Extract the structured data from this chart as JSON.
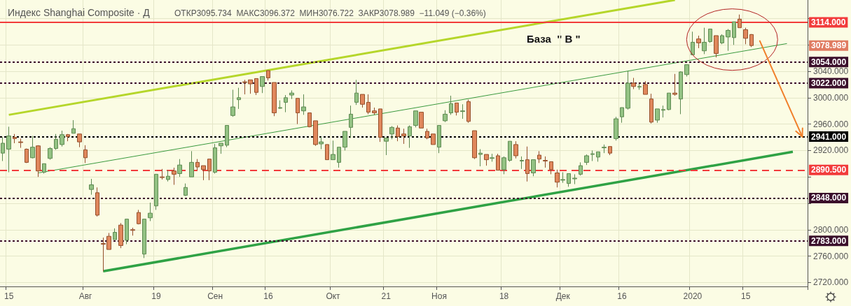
{
  "chart_data": {
    "type": "candlestick",
    "title": "Индекс Shanghai Composite · Д",
    "subtitle": "ОТКР3095.734  МАКС3096.372  МИН3076.722  ЗАКР3078.989  −11.049 (−0.36%)",
    "categories": [
      null,
      "15",
      null,
      null,
      null,
      null,
      null,
      null,
      null,
      null,
      null,
      null,
      null,
      null,
      "Авг",
      null,
      null,
      null,
      null,
      null,
      null,
      null,
      null,
      null,
      null,
      null,
      "19",
      null,
      null,
      null,
      null,
      null,
      null,
      null,
      null,
      null,
      "Сен",
      null,
      null,
      null,
      null,
      null,
      null,
      null,
      null,
      "16",
      null,
      null,
      null,
      null,
      null,
      null,
      null,
      null,
      null,
      null,
      "Окт",
      null,
      null,
      null,
      null,
      null,
      null,
      null,
      null,
      "21",
      null,
      null,
      null,
      null,
      null,
      null,
      null,
      null,
      "Ноя",
      null,
      null,
      null,
      null,
      null,
      null,
      null,
      null,
      null,
      null,
      "18",
      null,
      null,
      null,
      null,
      null,
      null,
      null,
      null,
      null,
      "Дек",
      null,
      null,
      null,
      null,
      null,
      null,
      null,
      null,
      null,
      "16",
      null,
      null,
      null,
      null,
      null,
      null,
      null,
      null,
      null,
      null,
      null,
      "2020",
      null,
      null,
      null,
      null,
      null,
      null,
      null,
      null,
      "15",
      null,
      null,
      null,
      null,
      null,
      null,
      null,
      null,
      null,
      null
    ],
    "ohlc": [
      [
        2916,
        2940,
        2904,
        2931
      ],
      [
        2922,
        2956,
        2887,
        2942
      ],
      [
        2940,
        2945,
        2931,
        2938
      ],
      [
        2933,
        2938,
        2924,
        2932
      ],
      [
        2922,
        2923,
        2901,
        2902
      ],
      [
        2909,
        2942,
        2908,
        2925
      ],
      [
        2927,
        2928,
        2880,
        2889
      ],
      [
        2887,
        2900,
        2885,
        2900
      ],
      [
        2908,
        2925,
        2906,
        2923
      ],
      [
        2923,
        2945,
        2921,
        2937
      ],
      [
        2929,
        2950,
        2926,
        2944
      ],
      [
        2944,
        2945,
        2934,
        2941
      ],
      [
        2946,
        2966,
        2946,
        2953
      ],
      [
        2945,
        2945,
        2925,
        2933
      ],
      [
        2921,
        2928,
        2901,
        2909
      ],
      [
        2861,
        2877,
        2853,
        2868
      ],
      [
        2856,
        2864,
        2820,
        2822
      ],
      [
        2779,
        2788,
        2737,
        2778
      ],
      [
        2790,
        2795,
        2770,
        2770
      ],
      [
        2785,
        2802,
        2785,
        2796
      ],
      [
        2807,
        2810,
        2772,
        2776
      ],
      [
        2784,
        2816,
        2778,
        2816
      ],
      [
        2800,
        2803,
        2791,
        2799
      ],
      [
        2826,
        2830,
        2808,
        2809
      ],
      [
        2763,
        2816,
        2757,
        2816
      ],
      [
        2818,
        2841,
        2813,
        2825
      ],
      [
        2836,
        2884,
        2830,
        2884
      ],
      [
        2880,
        2892,
        2876,
        2879
      ],
      [
        2876,
        2890,
        2873,
        2881
      ],
      [
        2889,
        2894,
        2868,
        2884
      ],
      [
        2885,
        2907,
        2880,
        2898
      ],
      [
        2852,
        2870,
        2851,
        2864
      ],
      [
        2880,
        2919,
        2880,
        2902
      ],
      [
        2902,
        2907,
        2890,
        2895
      ],
      [
        2897,
        2897,
        2875,
        2891
      ],
      [
        2907,
        2907,
        2875,
        2889
      ],
      [
        2887,
        2930,
        2885,
        2924
      ],
      [
        2927,
        2931,
        2915,
        2931
      ],
      [
        2928,
        2958,
        2925,
        2958
      ],
      [
        2973,
        3012,
        2971,
        2986
      ],
      [
        2997,
        3015,
        2983,
        3000
      ],
      [
        3024,
        3027,
        3005,
        3023
      ],
      [
        3027,
        3027,
        3006,
        3021
      ],
      [
        3029,
        3029,
        3004,
        3008
      ],
      [
        3017,
        3032,
        3007,
        3032
      ],
      [
        3041,
        3041,
        3026,
        3030
      ],
      [
        3023,
        3023,
        2972,
        2977
      ],
      [
        2984,
        2996,
        2983,
        2985
      ],
      [
        2993,
        3004,
        2978,
        3000
      ],
      [
        3004,
        3011,
        2998,
        3007
      ],
      [
        2999,
        2999,
        2960,
        2977
      ],
      [
        2980,
        3005,
        2974,
        2986
      ],
      [
        2977,
        2977,
        2955,
        2956
      ],
      [
        2965,
        2965,
        2927,
        2929
      ],
      [
        2930,
        2941,
        2922,
        2933
      ],
      [
        2929,
        2929,
        2906,
        2906
      ],
      [
        2906,
        2935,
        2906,
        2914
      ],
      [
        2902,
        2925,
        2894,
        2925
      ],
      [
        2925,
        2949,
        2920,
        2949
      ],
      [
        2955,
        2988,
        2939,
        2975
      ],
      [
        2993,
        3027,
        2989,
        3007
      ],
      [
        3005,
        3005,
        2985,
        2990
      ],
      [
        2993,
        3005,
        2975,
        2978
      ],
      [
        2980,
        2985,
        2974,
        2977
      ],
      [
        2983,
        2983,
        2933,
        2940
      ],
      [
        2934,
        2939,
        2913,
        2939
      ],
      [
        2945,
        2957,
        2937,
        2955
      ],
      [
        2954,
        2958,
        2934,
        2941
      ],
      [
        2945,
        2953,
        2930,
        2942
      ],
      [
        2942,
        2958,
        2924,
        2956
      ],
      [
        2958,
        2980,
        2955,
        2980
      ],
      [
        2978,
        2978,
        2954,
        2954
      ],
      [
        2949,
        2953,
        2937,
        2939
      ],
      [
        2945,
        2945,
        2929,
        2929
      ],
      [
        2925,
        2958,
        2916,
        2958
      ],
      [
        2965,
        2981,
        2963,
        2975
      ],
      [
        2977,
        3003,
        2974,
        2991
      ],
      [
        2992,
        2992,
        2973,
        2978
      ],
      [
        2979,
        2990,
        2968,
        2980
      ],
      [
        2994,
        2997,
        2962,
        2964
      ],
      [
        2950,
        2950,
        2907,
        2909
      ],
      [
        2914,
        2922,
        2896,
        2916
      ],
      [
        2914,
        2914,
        2897,
        2906
      ],
      [
        2908,
        2915,
        2903,
        2909
      ],
      [
        2912,
        2915,
        2890,
        2890
      ],
      [
        2891,
        2911,
        2884,
        2909
      ],
      [
        2905,
        2934,
        2903,
        2934
      ],
      [
        2929,
        2934,
        2908,
        2912
      ],
      [
        2904,
        2911,
        2892,
        2905
      ],
      [
        2906,
        2926,
        2873,
        2885
      ],
      [
        2886,
        2906,
        2881,
        2906
      ],
      [
        2913,
        2919,
        2901,
        2907
      ],
      [
        2905,
        2911,
        2894,
        2904
      ],
      [
        2903,
        2903,
        2884,
        2891
      ],
      [
        2886,
        2891,
        2864,
        2872
      ],
      [
        2875,
        2887,
        2871,
        2876
      ],
      [
        2870,
        2885,
        2865,
        2885
      ],
      [
        2877,
        2884,
        2869,
        2878
      ],
      [
        2884,
        2902,
        2882,
        2897
      ],
      [
        2902,
        2914,
        2898,
        2912
      ],
      [
        2914,
        2920,
        2904,
        2915
      ],
      [
        2910,
        2918,
        2903,
        2918
      ],
      [
        2924,
        2929,
        2916,
        2925
      ],
      [
        2926,
        2926,
        2913,
        2916
      ],
      [
        2938,
        2971,
        2935,
        2968
      ],
      [
        2971,
        2985,
        2962,
        2985
      ],
      [
        2984,
        3040,
        2982,
        3022
      ],
      [
        3022,
        3030,
        3013,
        3017
      ],
      [
        3016,
        3021,
        3012,
        3017
      ],
      [
        3020,
        3025,
        3005,
        3005
      ],
      [
        2998,
        3006,
        2961,
        2963
      ],
      [
        2966,
        2983,
        2962,
        2983
      ],
      [
        2981,
        2988,
        2970,
        2982
      ],
      [
        2982,
        3007,
        2981,
        3007
      ],
      [
        3007,
        3036,
        3003,
        3005
      ],
      [
        2998,
        3040,
        2975,
        3039
      ],
      [
        3035,
        3050,
        3032,
        3050
      ],
      [
        3065,
        3100,
        3065,
        3084
      ],
      [
        3089,
        3094,
        3075,
        3083
      ],
      [
        3071,
        3106,
        3066,
        3084
      ],
      [
        3085,
        3104,
        3083,
        3104
      ],
      [
        3094,
        3094,
        3061,
        3067
      ],
      [
        3083,
        3096,
        3081,
        3094
      ],
      [
        3092,
        3104,
        3071,
        3102
      ],
      [
        3091,
        3115,
        3080,
        3115
      ],
      [
        3119,
        3126,
        3106,
        3106
      ],
      [
        3103,
        3106,
        3081,
        3090
      ],
      [
        3095.734,
        3096.372,
        3076.722,
        3078.989
      ],
      null,
      null,
      null,
      null,
      null,
      null,
      null,
      null,
      null
    ],
    "series": [
      {
        "type": "line",
        "color": "#b5d62a",
        "values": [
          null,
          2974,
          null,
          null,
          null,
          null,
          null,
          null,
          null,
          null,
          null,
          null,
          null,
          null,
          null,
          null,
          null,
          null,
          null,
          null,
          null,
          null,
          null,
          null,
          null,
          null,
          null,
          null,
          null,
          null,
          null,
          null,
          null,
          null,
          null,
          null,
          null,
          null,
          null,
          null,
          null,
          null,
          null,
          null,
          null,
          null,
          null,
          null,
          null,
          null,
          null,
          null,
          null,
          null,
          null,
          null,
          null,
          null,
          null,
          null,
          null,
          null,
          null,
          null,
          null,
          null,
          null,
          null,
          null,
          null,
          null,
          null,
          null,
          null,
          null,
          null,
          null,
          null,
          null,
          null,
          null,
          null,
          null,
          null,
          null,
          null,
          null,
          null,
          null,
          null,
          null,
          null,
          null,
          null,
          null,
          null,
          null,
          null,
          null,
          null,
          null,
          null,
          null,
          null,
          null,
          null,
          null,
          null,
          null,
          null,
          null,
          null,
          null,
          null,
          3148,
          null,
          null,
          null,
          null,
          null,
          null,
          null,
          null,
          null,
          null,
          null,
          null,
          null,
          null,
          null,
          null,
          null,
          null,
          null,
          null,
          null,
          null
        ]
      },
      {
        "type": "line",
        "color": "#3a9a3f",
        "values": [
          null,
          null,
          null,
          null,
          null,
          null,
          2886,
          null,
          null,
          null,
          null,
          null,
          null,
          null,
          null,
          null,
          null,
          null,
          null,
          null,
          null,
          null,
          null,
          null,
          null,
          null,
          null,
          null,
          null,
          null,
          null,
          null,
          null,
          null,
          null,
          null,
          null,
          null,
          null,
          null,
          null,
          null,
          null,
          null,
          null,
          null,
          null,
          null,
          null,
          null,
          null,
          null,
          null,
          null,
          null,
          null,
          null,
          null,
          null,
          null,
          null,
          null,
          null,
          null,
          null,
          null,
          null,
          null,
          null,
          null,
          null,
          null,
          null,
          null,
          null,
          null,
          null,
          null,
          null,
          null,
          null,
          null,
          null,
          null,
          null,
          null,
          null,
          null,
          null,
          null,
          null,
          null,
          null,
          null,
          null,
          null,
          null,
          null,
          null,
          null,
          null,
          null,
          null,
          null,
          null,
          null,
          null,
          null,
          null,
          null,
          null,
          null,
          null,
          null,
          null,
          null,
          null,
          null,
          null,
          null,
          null,
          null,
          null,
          null,
          null,
          null,
          null,
          null,
          null,
          null,
          null,
          null,
          null,
          3082,
          null,
          null,
          null
        ]
      },
      {
        "type": "line",
        "color": "#2fa245",
        "values": [
          null,
          null,
          null,
          null,
          null,
          null,
          null,
          null,
          null,
          null,
          null,
          null,
          null,
          null,
          null,
          null,
          null,
          2737,
          null,
          null,
          null,
          null,
          null,
          null,
          null,
          null,
          null,
          null,
          null,
          null,
          null,
          null,
          null,
          null,
          null,
          null,
          null,
          null,
          null,
          null,
          null,
          null,
          null,
          null,
          null,
          null,
          null,
          null,
          null,
          null,
          null,
          null,
          null,
          null,
          null,
          null,
          null,
          null,
          null,
          null,
          null,
          null,
          null,
          null,
          null,
          null,
          null,
          null,
          null,
          null,
          null,
          null,
          null,
          null,
          null,
          null,
          null,
          null,
          null,
          null,
          null,
          null,
          null,
          null,
          null,
          null,
          null,
          null,
          null,
          null,
          null,
          null,
          null,
          null,
          null,
          null,
          null,
          null,
          null,
          null,
          null,
          null,
          null,
          null,
          null,
          null,
          null,
          null,
          null,
          null,
          null,
          null,
          null,
          null,
          null,
          null,
          null,
          null,
          null,
          null,
          null,
          null,
          null,
          null,
          null,
          null,
          null,
          null,
          null,
          null,
          null,
          null,
          null,
          null,
          2918,
          null,
          null
        ]
      }
    ],
    "ylim": [
      2714,
      3148
    ],
    "yticks": [
      {
        "value": 2720,
        "label": "2720.000"
      },
      {
        "value": 2760,
        "label": "2760.000"
      },
      {
        "value": 2800,
        "label": "2800.000"
      },
      {
        "value": 2840,
        "label": null
      },
      {
        "value": 2880,
        "label": null
      },
      {
        "value": 2920,
        "label": "2920.000"
      },
      {
        "value": 2960,
        "label": "2960.000"
      },
      {
        "value": 3000,
        "label": "3000.000"
      },
      {
        "value": 3040,
        "label": "3040.000"
      },
      {
        "value": 3080,
        "label": null
      },
      {
        "value": 3120,
        "label": null
      }
    ],
    "ref_lines": [
      {
        "axis": "y",
        "value": 3114,
        "label": "3114.000",
        "color": "#f23b3b",
        "line_style": "solid"
      },
      {
        "axis": "y",
        "value": 3054,
        "label": "3054.000",
        "color": "#3b0f2b",
        "line_style": "dotted"
      },
      {
        "axis": "y",
        "value": 3022,
        "label": "3022.000",
        "color": "#3b0f2b",
        "line_style": "dotted"
      },
      {
        "axis": "y",
        "value": 2941,
        "label": "2941.000",
        "color": "#000000",
        "line_style": "dotted"
      },
      {
        "axis": "y",
        "value": 2890.5,
        "label": "2890.500",
        "color": "#f23b3b",
        "line_style": "dashed"
      },
      {
        "axis": "y",
        "value": 2848,
        "label": "2848.000",
        "color": "#3b0f2b",
        "line_style": "dotted"
      },
      {
        "axis": "y",
        "value": 2783,
        "label": "2783.000",
        "color": "#3b0f2b",
        "line_style": "dotted"
      }
    ],
    "annotations": [
      "База  \" В \"",
      "3078.989"
    ],
    "grid": true
  }
}
